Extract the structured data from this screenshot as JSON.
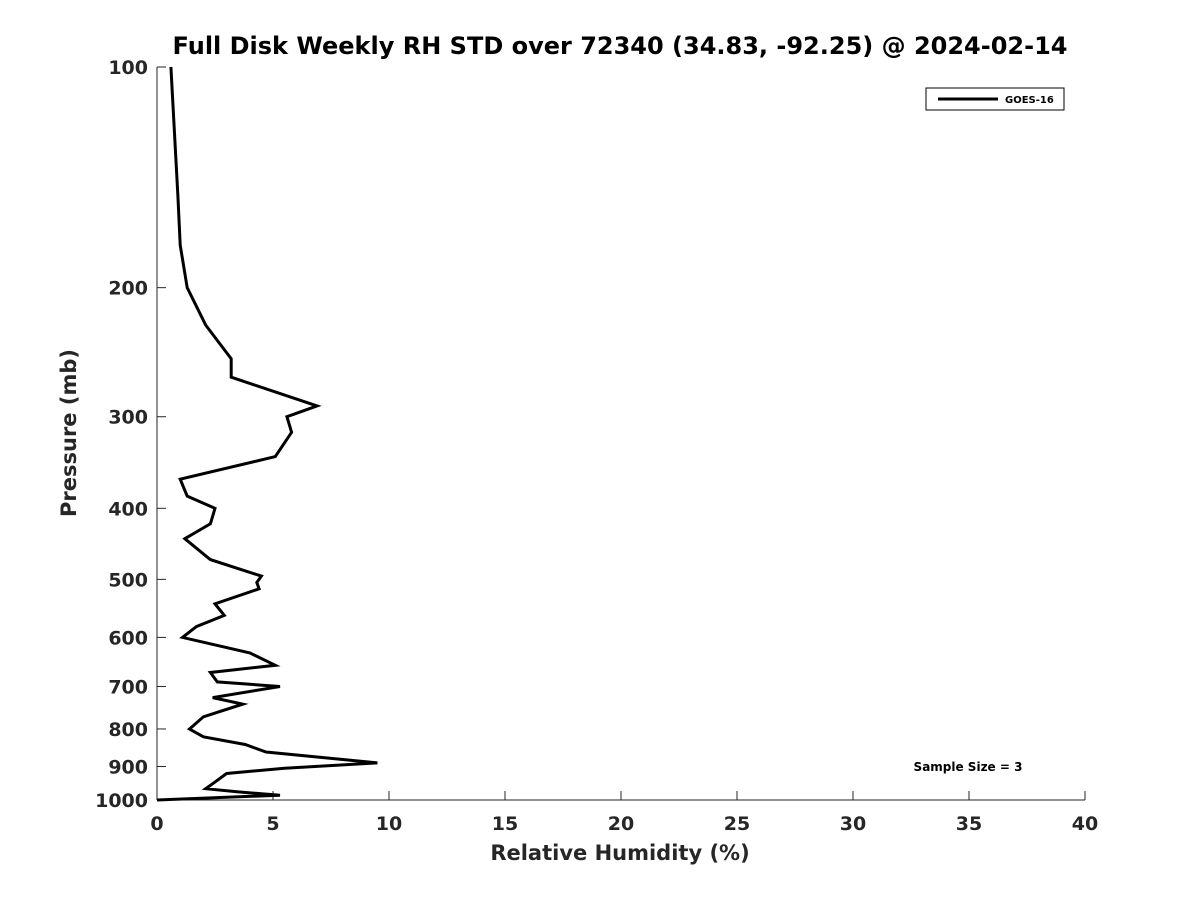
{
  "chart_data": {
    "type": "line",
    "title": "Full Disk Weekly RH STD over 72340 (34.83, -92.25) @ 2024-02-14",
    "xlabel": "Relative Humidity (%)",
    "ylabel": "Pressure (mb)",
    "xlim": [
      0,
      40
    ],
    "ylim": [
      100,
      1000
    ],
    "y_scale": "log",
    "y_reversed": true,
    "grid": false,
    "legend_position": "top-right",
    "x_ticks": [
      "0",
      "5",
      "10",
      "15",
      "20",
      "25",
      "30",
      "35",
      "40"
    ],
    "y_ticks": [
      "100",
      "200",
      "300",
      "400",
      "500",
      "600",
      "700",
      "800",
      "900",
      "1000"
    ],
    "series": [
      {
        "name": "GOES-16",
        "color": "#000000",
        "points": [
          [
            0.6,
            100
          ],
          [
            0.9,
            150
          ],
          [
            1.0,
            175
          ],
          [
            1.3,
            200
          ],
          [
            2.1,
            225
          ],
          [
            3.2,
            250
          ],
          [
            3.2,
            265
          ],
          [
            6.9,
            290
          ],
          [
            5.6,
            300
          ],
          [
            5.8,
            315
          ],
          [
            5.1,
            340
          ],
          [
            1.0,
            365
          ],
          [
            1.3,
            385
          ],
          [
            2.5,
            400
          ],
          [
            2.3,
            420
          ],
          [
            1.2,
            440
          ],
          [
            2.3,
            470
          ],
          [
            4.5,
            495
          ],
          [
            4.3,
            505
          ],
          [
            4.4,
            515
          ],
          [
            2.5,
            540
          ],
          [
            2.9,
            560
          ],
          [
            1.7,
            580
          ],
          [
            1.1,
            600
          ],
          [
            4.0,
            630
          ],
          [
            5.1,
            655
          ],
          [
            2.3,
            670
          ],
          [
            2.6,
            690
          ],
          [
            5.3,
            700
          ],
          [
            2.4,
            725
          ],
          [
            3.7,
            740
          ],
          [
            2.0,
            770
          ],
          [
            1.6,
            790
          ],
          [
            1.4,
            800
          ],
          [
            2.0,
            820
          ],
          [
            3.8,
            840
          ],
          [
            4.7,
            860
          ],
          [
            9.5,
            890
          ],
          [
            5.5,
            905
          ],
          [
            3.0,
            920
          ],
          [
            2.4,
            950
          ],
          [
            2.1,
            965
          ],
          [
            3.5,
            975
          ],
          [
            5.3,
            985
          ],
          [
            0.0,
            1000
          ]
        ]
      }
    ],
    "annotation": "Sample Size = 3"
  }
}
